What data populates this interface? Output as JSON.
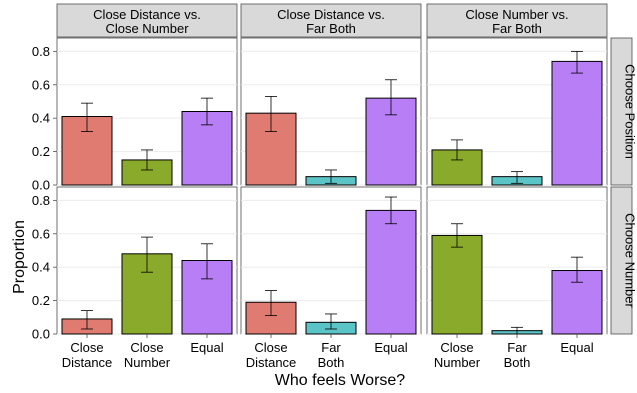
{
  "chart_data": {
    "type": "bar",
    "title": "",
    "xlabel": "Who feels Worse?",
    "ylabel": "Proportion",
    "ylim": [
      0,
      0.88
    ],
    "yticks": [
      "0.0",
      "0.2",
      "0.4",
      "0.6",
      "0.8"
    ],
    "grid": true,
    "colors": {
      "Close Distance": "#E07B72",
      "Close Number": "#8AAA2B",
      "Far Both": "#5BC4C6",
      "Equal": "#B87EF5"
    },
    "columns": [
      {
        "title_lines": [
          "Close Distance vs.",
          "Close Number"
        ],
        "categories": [
          {
            "key": "Close Distance",
            "label_lines": [
              "Close",
              "Distance"
            ]
          },
          {
            "key": "Close Number",
            "label_lines": [
              "Close",
              "Number"
            ]
          },
          {
            "key": "Equal",
            "label_lines": [
              "Equal"
            ]
          }
        ]
      },
      {
        "title_lines": [
          "Close Distance vs.",
          "Far Both"
        ],
        "categories": [
          {
            "key": "Close Distance",
            "label_lines": [
              "Close",
              "Distance"
            ]
          },
          {
            "key": "Far Both",
            "label_lines": [
              "Far",
              "Both"
            ]
          },
          {
            "key": "Equal",
            "label_lines": [
              "Equal"
            ]
          }
        ]
      },
      {
        "title_lines": [
          "Close Number vs.",
          "Far Both"
        ],
        "categories": [
          {
            "key": "Close Number",
            "label_lines": [
              "Close",
              "Number"
            ]
          },
          {
            "key": "Far Both",
            "label_lines": [
              "Far",
              "Both"
            ]
          },
          {
            "key": "Equal",
            "label_lines": [
              "Equal"
            ]
          }
        ]
      }
    ],
    "rows": [
      "Choose Position",
      "Choose Number"
    ],
    "panels": [
      [
        {
          "values": [
            0.41,
            0.15,
            0.44
          ],
          "lower": [
            0.32,
            0.09,
            0.36
          ],
          "upper": [
            0.49,
            0.21,
            0.52
          ]
        },
        {
          "values": [
            0.43,
            0.05,
            0.52
          ],
          "lower": [
            0.32,
            0.01,
            0.42
          ],
          "upper": [
            0.53,
            0.09,
            0.63
          ]
        },
        {
          "values": [
            0.21,
            0.05,
            0.74
          ],
          "lower": [
            0.15,
            0.01,
            0.67
          ],
          "upper": [
            0.27,
            0.08,
            0.8
          ]
        }
      ],
      [
        {
          "values": [
            0.09,
            0.48,
            0.44
          ],
          "lower": [
            0.03,
            0.37,
            0.33
          ],
          "upper": [
            0.14,
            0.58,
            0.54
          ]
        },
        {
          "values": [
            0.19,
            0.07,
            0.74
          ],
          "lower": [
            0.11,
            0.03,
            0.66
          ],
          "upper": [
            0.26,
            0.12,
            0.82
          ]
        },
        {
          "values": [
            0.59,
            0.02,
            0.38
          ],
          "lower": [
            0.52,
            0.0,
            0.31
          ],
          "upper": [
            0.66,
            0.04,
            0.46
          ]
        }
      ]
    ]
  }
}
